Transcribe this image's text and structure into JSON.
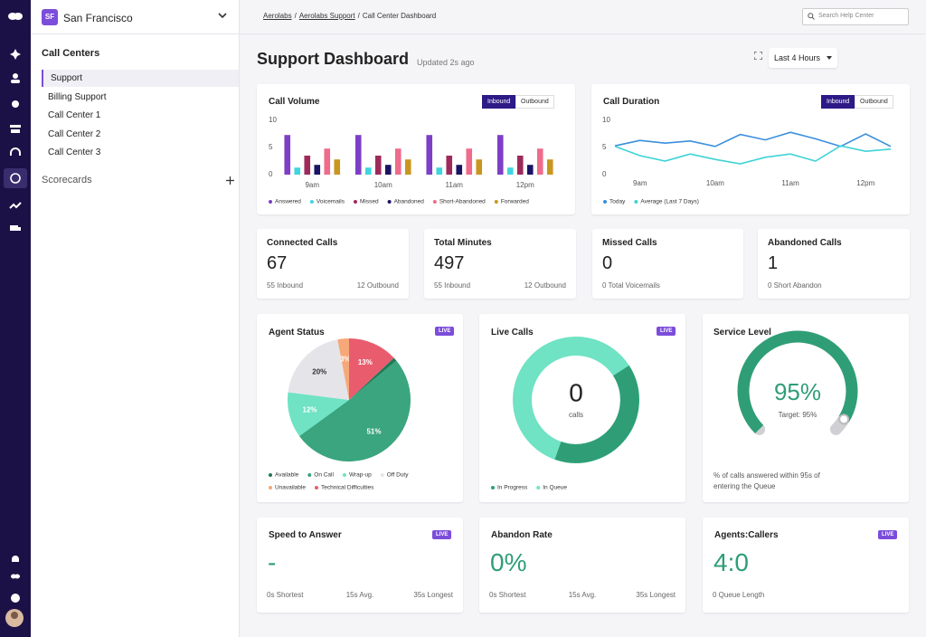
{
  "sidebar": {
    "org_initials": "SF",
    "org": "San Francisco",
    "section": "Call Centers",
    "items": [
      "Support",
      "Billing Support",
      "Call Center 1",
      "Call Center 2",
      "Call Center 3"
    ],
    "scorecards": "Scorecards"
  },
  "header": {
    "breadcrumbs": [
      "Aerolabs",
      "Aerolabs Support",
      "Call Center Dashboard"
    ],
    "breadcrumb_separator": "/",
    "search_placeholder": "Search Help Center"
  },
  "page": {
    "title": "Support Dashboard",
    "updated": "Updated 2s ago",
    "range": "Last 4 Hours"
  },
  "chart_data": [
    {
      "type": "bar",
      "title": "Call Volume",
      "toggle": [
        "Inbound",
        "Outbound"
      ],
      "active_toggle": 0,
      "categories": [
        "9am",
        "10am",
        "11am",
        "12pm"
      ],
      "ylim": [
        0,
        10
      ],
      "yticks": [
        0,
        5,
        10
      ],
      "series": [
        {
          "name": "Answered",
          "color": "#7d3fc6",
          "values": [
            7.3,
            7.3,
            7.3,
            7.3
          ]
        },
        {
          "name": "Voicemails",
          "color": "#3fd6df",
          "values": [
            1.3,
            1.3,
            1.3,
            1.3
          ]
        },
        {
          "name": "Missed",
          "color": "#9e2a5c",
          "values": [
            3.5,
            3.5,
            3.5,
            3.5
          ]
        },
        {
          "name": "Abandoned",
          "color": "#1b1464",
          "values": [
            1.8,
            1.8,
            1.8,
            1.8
          ]
        },
        {
          "name": "Short-Abandoned",
          "color": "#ef6b8c",
          "values": [
            4.8,
            4.8,
            4.8,
            4.8
          ]
        },
        {
          "name": "Forwarded",
          "color": "#c9971f",
          "values": [
            2.8,
            2.8,
            2.8,
            2.8
          ]
        }
      ]
    },
    {
      "type": "line",
      "title": "Call Duration",
      "toggle": [
        "Inbound",
        "Outbound"
      ],
      "active_toggle": 0,
      "categories": [
        null,
        "9am",
        null,
        null,
        "10am",
        null,
        null,
        "11am",
        null,
        null,
        "12pm",
        null
      ],
      "ylim": [
        0,
        10
      ],
      "yticks": [
        0,
        5,
        10
      ],
      "series": [
        {
          "name": "Today",
          "color": "#3a8fdc",
          "values": [
            5.3,
            6.3,
            5.8,
            6.2,
            5.2,
            7.4,
            6.4,
            7.8,
            6.6,
            5.2,
            7.5,
            5.2
          ]
        },
        {
          "name": "Average (Last 7 Days)",
          "color": "#3fd3d6",
          "values": [
            5.2,
            3.5,
            2.5,
            3.8,
            2.8,
            2.0,
            3.2,
            3.8,
            2.5,
            5.3,
            4.3,
            4.7
          ]
        }
      ]
    },
    {
      "type": "pie",
      "title": "Agent Status",
      "badge": "LIVE",
      "categories": [
        "Available",
        "On Call",
        "Wrap-up",
        "Off Duty",
        "Unavailable",
        "Technical Difficulties"
      ],
      "values": [
        1,
        51,
        12,
        20,
        3,
        13
      ],
      "value_labels": [
        null,
        "51%",
        "12%",
        "20%",
        "3%",
        "13%"
      ],
      "colors": [
        "#1f7a57",
        "#3aa57e",
        "#6fe3c4",
        "#e4e4e9",
        "#f6a878",
        "#e85c6e"
      ]
    },
    {
      "type": "gauge",
      "title": "Service Level",
      "value": 95,
      "value_label": "95%",
      "ylim": [
        0,
        100
      ],
      "color": "#2f9e77",
      "target": "Target: 95%",
      "caption": "% of calls answered within 95s of entering the Queue"
    }
  ],
  "live_calls": {
    "title": "Live Calls",
    "badge": "LIVE",
    "value": 0,
    "unit": "calls",
    "legend": [
      "In Progress",
      "In Queue"
    ],
    "colors": [
      "#2f9e77",
      "#6fe3c4"
    ]
  },
  "stats": [
    {
      "title": "Connected Calls",
      "value": 67,
      "details": [
        "55 Inbound",
        "12 Outbound"
      ]
    },
    {
      "title": "Total Minutes",
      "value": 497,
      "details": [
        "55 Inbound",
        "12 Outbound"
      ]
    },
    {
      "title": "Missed Calls",
      "value": 0,
      "details": [
        "0 Total Voicemails"
      ]
    },
    {
      "title": "Abandoned Calls",
      "value": 1,
      "details": [
        "0 Short Abandon"
      ]
    }
  ],
  "kpis": [
    {
      "title": "Speed to Answer",
      "badge": "LIVE",
      "value": "-",
      "details": [
        "0s Shortest",
        "15s Avg.",
        "35s Longest"
      ]
    },
    {
      "title": "Abandon Rate",
      "value": "0%",
      "details": [
        "0s Shortest",
        "15s Avg.",
        "35s Longest"
      ]
    },
    {
      "title": "Agents:Callers",
      "badge": "LIVE",
      "value": "4:0",
      "details": [
        "0 Queue Length"
      ]
    }
  ]
}
